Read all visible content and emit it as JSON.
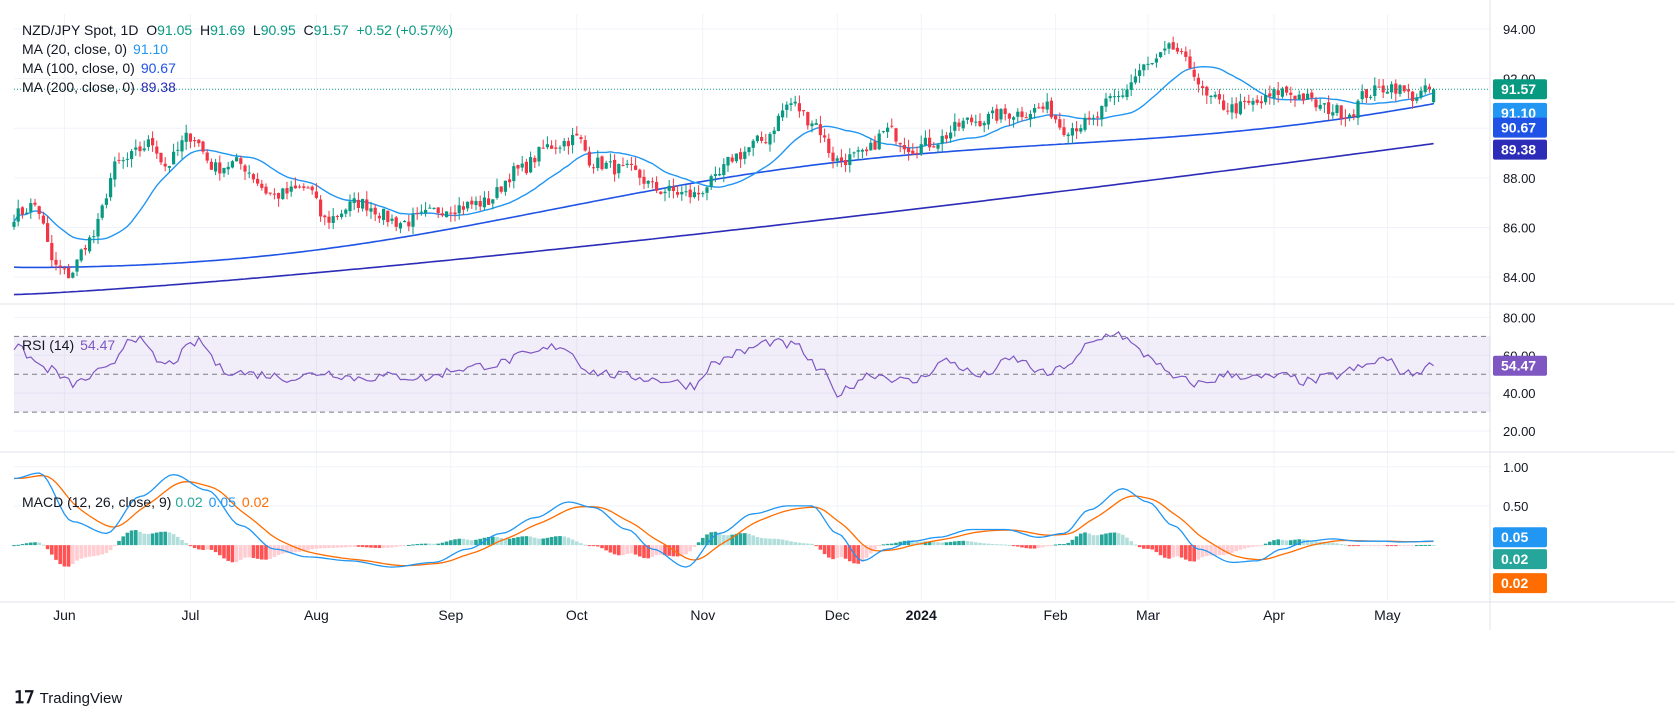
{
  "header": {
    "symbol": "NZD/JPY Spot, 1D",
    "ohlc": {
      "o": "91.05",
      "h": "91.69",
      "l": "90.95",
      "c": "91.57",
      "chg": "+0.52 (+0.57%)"
    }
  },
  "legend": {
    "ma20": {
      "label": "MA (20, close, 0)",
      "value": "91.10",
      "color": "#2196f3"
    },
    "ma100": {
      "label": "MA (100, close, 0)",
      "value": "90.67",
      "color": "#1e53e5"
    },
    "ma200": {
      "label": "MA (200, close, 0)",
      "value": "89.38",
      "color": "#2c2cb8"
    },
    "rsi": {
      "label": "RSI (14)",
      "value": "54.47",
      "color": "#7e57c2"
    },
    "macd": {
      "label": "MACD (12, 26, close, 9)",
      "hist": "0.02",
      "macd": "0.05",
      "signal": "0.02"
    }
  },
  "footer": {
    "brand": "TradingView"
  },
  "chart_data": {
    "type": "candlestick",
    "colors": {
      "up": "#089981",
      "down": "#f23645",
      "ma20": "#2196f3",
      "ma100": "#1e53e5",
      "ma200": "#2c2cb8",
      "rsi": "#7e57c2",
      "macd": "#2196f3",
      "signal": "#ff6d00",
      "hist_up_strong": "#26a69a",
      "hist_up_weak": "#b2dfdb",
      "hist_down_strong": "#ff5252",
      "hist_down_weak": "#ffcdd2"
    },
    "x_labels": [
      "Jun",
      "Jul",
      "Aug",
      "Sep",
      "Oct",
      "Nov",
      "Dec",
      "2024",
      "Feb",
      "Mar",
      "Apr",
      "May"
    ],
    "x_label_index": [
      12,
      42,
      72,
      104,
      134,
      164,
      196,
      216,
      248,
      270,
      300,
      327
    ],
    "price_pane": {
      "ylim": [
        83.0,
        94.6
      ],
      "ticks": [
        84,
        86,
        88,
        90,
        92,
        94
      ],
      "last": 91.57,
      "badges": [
        {
          "value": "91.57",
          "color": "#089981"
        },
        {
          "value": "91.10",
          "color": "#2196f3"
        },
        {
          "value": "90.67",
          "color": "#1e53e5"
        },
        {
          "value": "89.38",
          "color": "#2c2cb8"
        }
      ]
    },
    "rsi_pane": {
      "ylim": [
        10,
        86
      ],
      "ticks": [
        20,
        40,
        60,
        80
      ],
      "bands": [
        30,
        50,
        70
      ],
      "last": "54.47"
    },
    "macd_pane": {
      "ylim": [
        -0.7,
        1.15
      ],
      "ticks": [
        0.5,
        1.0
      ],
      "tick_labels": [
        "0.50",
        "1.00"
      ],
      "badges": [
        {
          "value": "0.05",
          "color": "#2196f3"
        },
        {
          "value": "0.02",
          "color": "#26a69a"
        },
        {
          "value": "0.02",
          "color": "#ff6d00"
        }
      ]
    },
    "close_anchors": [
      [
        0,
        86.5
      ],
      [
        5,
        86.9
      ],
      [
        10,
        84.4
      ],
      [
        13,
        84.1
      ],
      [
        18,
        85.5
      ],
      [
        25,
        88.6
      ],
      [
        33,
        89.4
      ],
      [
        36,
        88.5
      ],
      [
        42,
        89.7
      ],
      [
        48,
        88.4
      ],
      [
        53,
        88.6
      ],
      [
        62,
        87.3
      ],
      [
        70,
        87.6
      ],
      [
        74,
        86.3
      ],
      [
        82,
        87.0
      ],
      [
        92,
        86.2
      ],
      [
        104,
        86.8
      ],
      [
        112,
        87.0
      ],
      [
        120,
        88.3
      ],
      [
        128,
        89.3
      ],
      [
        134,
        89.6
      ],
      [
        138,
        88.6
      ],
      [
        146,
        88.3
      ],
      [
        154,
        87.5
      ],
      [
        162,
        87.3
      ],
      [
        166,
        87.8
      ],
      [
        172,
        88.9
      ],
      [
        178,
        89.5
      ],
      [
        185,
        91.0
      ],
      [
        190,
        90.3
      ],
      [
        196,
        88.7
      ],
      [
        202,
        88.9
      ],
      [
        208,
        89.9
      ],
      [
        214,
        89.2
      ],
      [
        218,
        89.4
      ],
      [
        228,
        90.3
      ],
      [
        238,
        90.6
      ],
      [
        246,
        90.8
      ],
      [
        250,
        90.0
      ],
      [
        256,
        90.2
      ],
      [
        262,
        91.2
      ],
      [
        270,
        92.5
      ],
      [
        276,
        93.2
      ],
      [
        280,
        92.5
      ],
      [
        284,
        91.2
      ],
      [
        290,
        90.8
      ],
      [
        296,
        91.0
      ],
      [
        302,
        91.5
      ],
      [
        306,
        91.3
      ],
      [
        312,
        90.8
      ],
      [
        318,
        90.6
      ],
      [
        322,
        91.4
      ],
      [
        328,
        91.7
      ],
      [
        333,
        91.3
      ],
      [
        338,
        91.57
      ]
    ],
    "rsi_anchors": [
      [
        0,
        64
      ],
      [
        8,
        53
      ],
      [
        14,
        45
      ],
      [
        22,
        52
      ],
      [
        28,
        70
      ],
      [
        36,
        55
      ],
      [
        44,
        67
      ],
      [
        50,
        52
      ],
      [
        58,
        50
      ],
      [
        66,
        48
      ],
      [
        74,
        51
      ],
      [
        82,
        48
      ],
      [
        90,
        49
      ],
      [
        98,
        48
      ],
      [
        106,
        53
      ],
      [
        114,
        55
      ],
      [
        122,
        60
      ],
      [
        130,
        65
      ],
      [
        138,
        51
      ],
      [
        146,
        49
      ],
      [
        154,
        47
      ],
      [
        162,
        44
      ],
      [
        166,
        55
      ],
      [
        172,
        61
      ],
      [
        180,
        67
      ],
      [
        186,
        65
      ],
      [
        192,
        52
      ],
      [
        196,
        40
      ],
      [
        204,
        50
      ],
      [
        214,
        46
      ],
      [
        222,
        57
      ],
      [
        230,
        49
      ],
      [
        238,
        58
      ],
      [
        246,
        50
      ],
      [
        252,
        56
      ],
      [
        256,
        66
      ],
      [
        262,
        72
      ],
      [
        270,
        60
      ],
      [
        276,
        48
      ],
      [
        282,
        45
      ],
      [
        290,
        50
      ],
      [
        296,
        48
      ],
      [
        302,
        49
      ],
      [
        308,
        46
      ],
      [
        314,
        49
      ],
      [
        320,
        53
      ],
      [
        326,
        58
      ],
      [
        332,
        50
      ],
      [
        338,
        54.47
      ]
    ],
    "macd_anchors": [
      [
        0,
        0.85
      ],
      [
        6,
        0.92
      ],
      [
        14,
        0.3
      ],
      [
        22,
        0.15
      ],
      [
        30,
        0.62
      ],
      [
        38,
        0.9
      ],
      [
        46,
        0.7
      ],
      [
        54,
        0.25
      ],
      [
        62,
        -0.05
      ],
      [
        70,
        -0.15
      ],
      [
        80,
        -0.2
      ],
      [
        90,
        -0.28
      ],
      [
        100,
        -0.22
      ],
      [
        108,
        -0.05
      ],
      [
        116,
        0.15
      ],
      [
        124,
        0.35
      ],
      [
        132,
        0.55
      ],
      [
        138,
        0.48
      ],
      [
        146,
        0.2
      ],
      [
        152,
        -0.05
      ],
      [
        160,
        -0.28
      ],
      [
        168,
        0.15
      ],
      [
        176,
        0.4
      ],
      [
        184,
        0.5
      ],
      [
        190,
        0.5
      ],
      [
        196,
        0.15
      ],
      [
        202,
        -0.2
      ],
      [
        208,
        -0.05
      ],
      [
        214,
        0.05
      ],
      [
        220,
        0.1
      ],
      [
        228,
        0.2
      ],
      [
        236,
        0.2
      ],
      [
        244,
        0.1
      ],
      [
        250,
        0.15
      ],
      [
        256,
        0.45
      ],
      [
        264,
        0.72
      ],
      [
        270,
        0.55
      ],
      [
        276,
        0.25
      ],
      [
        282,
        -0.05
      ],
      [
        290,
        -0.22
      ],
      [
        296,
        -0.2
      ],
      [
        302,
        -0.05
      ],
      [
        308,
        0.05
      ],
      [
        314,
        0.08
      ],
      [
        320,
        0.05
      ],
      [
        326,
        0.05
      ],
      [
        330,
        0.04
      ],
      [
        338,
        0.05
      ]
    ]
  }
}
